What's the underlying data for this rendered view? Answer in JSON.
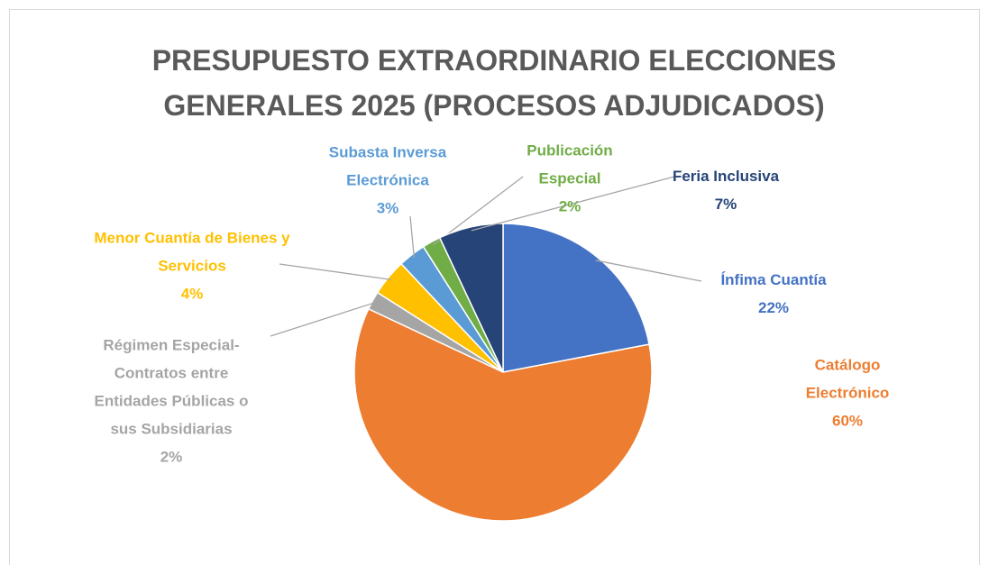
{
  "chart_data": {
    "type": "pie",
    "title": "PRESUPUESTO EXTRAORDINARIO ELECCIONES GENERALES 2025 (PROCESOS ADJUDICADOS)",
    "categories": [
      "Ínfima Cuantía",
      "Catálogo Electrónico",
      "Régimen Especial-Contratos entre Entidades Públicas o sus Subsidiarias",
      "Menor Cuantía de Bienes y Servicios",
      "Subasta Inversa Electrónica",
      "Publicación Especial",
      "Feria Inclusiva"
    ],
    "values": [
      22,
      60,
      2,
      4,
      3,
      2,
      7
    ],
    "value_labels": [
      "22%",
      "60%",
      "2%",
      "4%",
      "3%",
      "2%",
      "7%"
    ],
    "colors": [
      "#4472c4",
      "#ed7d31",
      "#a5a5a5",
      "#ffc000",
      "#5b9bd5",
      "#70ad47",
      "#264478"
    ]
  }
}
